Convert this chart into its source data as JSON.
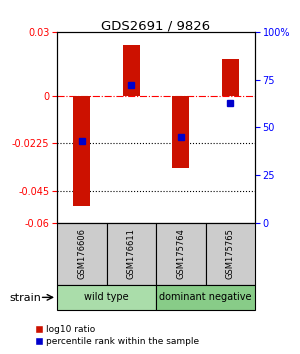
{
  "title": "GDS2691 / 9826",
  "samples": [
    "GSM176606",
    "GSM176611",
    "GSM175764",
    "GSM175765"
  ],
  "log10_ratio": [
    -0.052,
    0.024,
    -0.034,
    0.017
  ],
  "percentile": [
    43,
    72,
    45,
    63
  ],
  "ylim_left": [
    -0.06,
    0.03
  ],
  "ylim_right": [
    0,
    100
  ],
  "yticks_left": [
    0.03,
    0,
    -0.0225,
    -0.045,
    -0.06
  ],
  "yticks_right": [
    100,
    75,
    50,
    25,
    0
  ],
  "bar_color": "#cc1100",
  "dot_color": "#0000cc",
  "bar_width": 0.35,
  "group1_label": "wild type",
  "group1_color": "#aaddaa",
  "group2_label": "dominant negative",
  "group2_color": "#88cc88",
  "sample_box_color": "#cccccc",
  "legend1": "log10 ratio",
  "legend2": "percentile rank within the sample",
  "strain_label": "strain"
}
